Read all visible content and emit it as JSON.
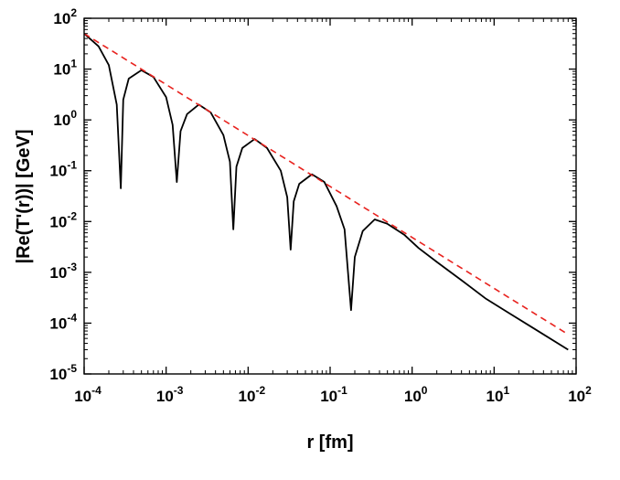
{
  "chart_data": {
    "type": "line",
    "xscale": "log",
    "yscale": "log",
    "xlim": [
      0.0001,
      100
    ],
    "ylim": [
      1e-05,
      100
    ],
    "x_ticks": [
      {
        "base": "10",
        "exp": "-4"
      },
      {
        "base": "10",
        "exp": "-3"
      },
      {
        "base": "10",
        "exp": "-2"
      },
      {
        "base": "10",
        "exp": "-1"
      },
      {
        "base": "10",
        "exp": "0"
      },
      {
        "base": "10",
        "exp": "1"
      },
      {
        "base": "10",
        "exp": "2"
      }
    ],
    "y_ticks": [
      {
        "base": "10",
        "exp": "-5"
      },
      {
        "base": "10",
        "exp": "-4"
      },
      {
        "base": "10",
        "exp": "-3"
      },
      {
        "base": "10",
        "exp": "-2"
      },
      {
        "base": "10",
        "exp": "-1"
      },
      {
        "base": "10",
        "exp": "0"
      },
      {
        "base": "10",
        "exp": "1"
      },
      {
        "base": "10",
        "exp": "2"
      }
    ],
    "xlabel": "r [fm]",
    "ylabel": "|Re(T'(r))|  [GeV]",
    "grid": false,
    "legend": "none",
    "series": [
      {
        "style": "solid",
        "color": "#000000",
        "points": [
          [
            0.0001,
            50
          ],
          [
            0.00015,
            28
          ],
          [
            0.0002,
            12
          ],
          [
            0.00025,
            2.0
          ],
          [
            0.00028,
            0.045
          ],
          [
            0.0003,
            2.5
          ],
          [
            0.00035,
            6.5
          ],
          [
            0.0005,
            9.5
          ],
          [
            0.0007,
            7.0
          ],
          [
            0.001,
            2.8
          ],
          [
            0.0012,
            0.8
          ],
          [
            0.00135,
            0.06
          ],
          [
            0.0015,
            0.6
          ],
          [
            0.0018,
            1.3
          ],
          [
            0.0025,
            2.0
          ],
          [
            0.0035,
            1.4
          ],
          [
            0.005,
            0.5
          ],
          [
            0.006,
            0.15
          ],
          [
            0.0066,
            0.007
          ],
          [
            0.0072,
            0.12
          ],
          [
            0.0085,
            0.28
          ],
          [
            0.012,
            0.42
          ],
          [
            0.017,
            0.28
          ],
          [
            0.025,
            0.1
          ],
          [
            0.03,
            0.03
          ],
          [
            0.033,
            0.0028
          ],
          [
            0.036,
            0.025
          ],
          [
            0.042,
            0.055
          ],
          [
            0.06,
            0.085
          ],
          [
            0.085,
            0.06
          ],
          [
            0.12,
            0.02
          ],
          [
            0.15,
            0.007
          ],
          [
            0.18,
            0.00018
          ],
          [
            0.2,
            0.002
          ],
          [
            0.25,
            0.0065
          ],
          [
            0.35,
            0.011
          ],
          [
            0.5,
            0.009
          ],
          [
            0.8,
            0.0055
          ],
          [
            1.2,
            0.003
          ],
          [
            2,
            0.0016
          ],
          [
            4,
            0.0007
          ],
          [
            8,
            0.0003
          ],
          [
            15,
            0.00016
          ],
          [
            30,
            8e-05
          ],
          [
            80,
            3e-05
          ]
        ]
      },
      {
        "style": "dashed",
        "color": "#e8221e",
        "points": [
          [
            0.0001,
            50
          ],
          [
            80,
            6e-05
          ]
        ]
      }
    ]
  }
}
